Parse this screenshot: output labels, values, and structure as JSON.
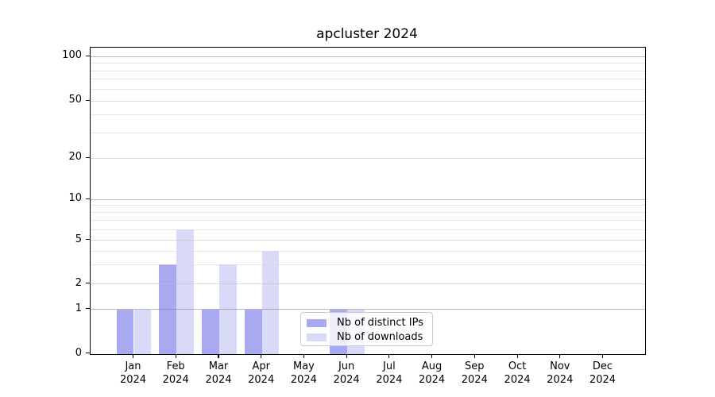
{
  "title": "apcluster 2024",
  "chart_data": {
    "type": "bar",
    "title": "apcluster 2024",
    "categories": [
      "Jan",
      "Feb",
      "Mar",
      "Apr",
      "May",
      "Jun",
      "Jul",
      "Aug",
      "Sep",
      "Oct",
      "Nov",
      "Dec"
    ],
    "category_year_label": "2024",
    "series": [
      {
        "name": "Nb of distinct IPs",
        "color": "#a9a9f2",
        "values": [
          1,
          3,
          1,
          1,
          null,
          1,
          null,
          null,
          null,
          null,
          null,
          null
        ]
      },
      {
        "name": "Nb of downloads",
        "color": "#d9d9f8",
        "values": [
          1,
          6,
          3,
          4,
          null,
          1,
          null,
          null,
          null,
          null,
          null,
          null
        ]
      }
    ],
    "xlabel": "",
    "ylabel": "",
    "yscale": "log-like (0 baseline, log above 1)",
    "y_ticks": [
      0,
      1,
      2,
      5,
      10,
      20,
      50,
      100
    ],
    "y_minor_gridlines": [
      3,
      4,
      6,
      7,
      8,
      9,
      30,
      40,
      60,
      70,
      80,
      90
    ],
    "ylim": [
      0,
      130
    ],
    "grid": true,
    "legend_position": "inside-bottom-center"
  },
  "legend": {
    "entries": [
      {
        "label": "Nb of distinct IPs",
        "color": "#a9a9f2"
      },
      {
        "label": "Nb of downloads",
        "color": "#d9d9f8"
      }
    ]
  }
}
